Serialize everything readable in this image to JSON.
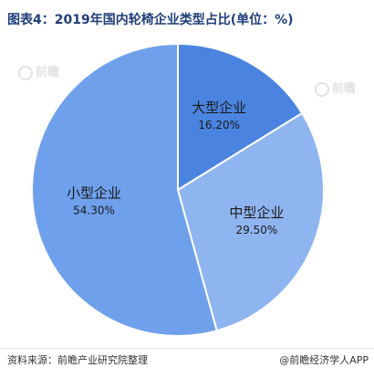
{
  "header": {
    "title": "图表4：2019年国内轮椅企业类型占比(单位：%)"
  },
  "watermark": {
    "text": "前瞻"
  },
  "chart_data": {
    "type": "pie",
    "title": "图表4：2019年国内轮椅企业类型占比(单位：%)",
    "slices": [
      {
        "label": "大型企业",
        "value": 16.2,
        "display": "16.20%",
        "color": "#4a84e0"
      },
      {
        "label": "中型企业",
        "value": 29.5,
        "display": "29.50%",
        "color": "#8fb5f0"
      },
      {
        "label": "小型企业",
        "value": 54.3,
        "display": "54.30%",
        "color": "#6ea0ec"
      }
    ]
  },
  "footer": {
    "source": "资料来源：前瞻产业研究院整理",
    "brand": "@前瞻经济学人APP"
  },
  "colors": {
    "slice_border": "#ffffff",
    "title": "#1f3f7a"
  }
}
